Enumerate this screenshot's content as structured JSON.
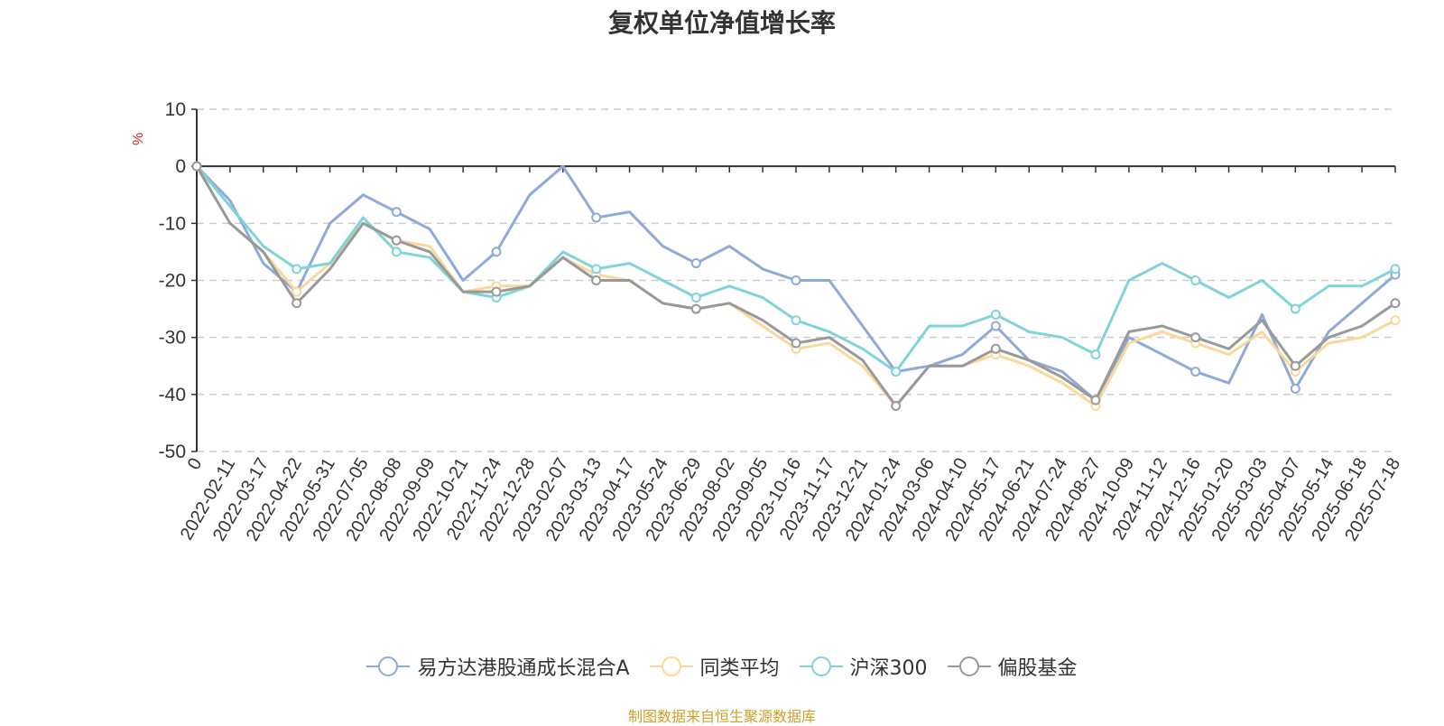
{
  "chart_data": {
    "type": "line",
    "title": "复权单位净值增长率",
    "ylabel": "%",
    "ylim": [
      -50,
      10
    ],
    "yticks": [
      10,
      0,
      -10,
      -20,
      -30,
      -40,
      -50
    ],
    "grid": true,
    "legend_position": "bottom",
    "source": "制图数据来自恒生聚源数据库",
    "x": [
      "0",
      "2022-02-11",
      "2022-03-17",
      "2022-04-22",
      "2022-05-31",
      "2022-07-05",
      "2022-08-08",
      "2022-09-09",
      "2022-10-21",
      "2022-11-24",
      "2022-12-28",
      "2023-02-07",
      "2023-03-13",
      "2023-04-17",
      "2023-05-24",
      "2023-06-29",
      "2023-08-02",
      "2023-09-05",
      "2023-10-16",
      "2023-11-17",
      "2023-12-21",
      "2024-01-24",
      "2024-03-06",
      "2024-04-10",
      "2024-05-17",
      "2024-06-21",
      "2024-07-24",
      "2024-08-27",
      "2024-10-09",
      "2024-11-12",
      "2024-12-16",
      "2025-01-20",
      "2025-03-03",
      "2025-04-07",
      "2025-05-14",
      "2025-06-18",
      "2025-07-18"
    ],
    "series": [
      {
        "name": "易方达港股通成长混合A",
        "color": "#8eaadb",
        "values": [
          0,
          -6,
          -17,
          -22,
          -10,
          -5,
          -8,
          -11,
          -20,
          -15,
          -5,
          0,
          -9,
          -8,
          -14,
          -17,
          -14,
          -18,
          -20,
          -20,
          -28,
          -36,
          -35,
          -33,
          -28,
          -34,
          -36,
          -41,
          -30,
          -33,
          -36,
          -38,
          -26,
          -39,
          -29,
          -24,
          -19
        ]
      },
      {
        "name": "同类平均",
        "color": "#fbd89a",
        "values": [
          0,
          -10,
          -15,
          -22,
          -17,
          -10,
          -13,
          -14,
          -22,
          -21,
          -21,
          -16,
          -19,
          -20,
          -24,
          -25,
          -24,
          -28,
          -32,
          -31,
          -35,
          -42,
          -35,
          -35,
          -33,
          -35,
          -38,
          -42,
          -31,
          -29,
          -31,
          -33,
          -29,
          -36,
          -31,
          -30,
          -27
        ]
      },
      {
        "name": "沪深300",
        "color": "#80d4d8",
        "values": [
          0,
          -7,
          -14,
          -18,
          -17,
          -9,
          -15,
          -16,
          -22,
          -23,
          -21,
          -15,
          -18,
          -17,
          -20,
          -23,
          -21,
          -23,
          -27,
          -29,
          -32,
          -36,
          -28,
          -28,
          -26,
          -29,
          -30,
          -33,
          -20,
          -17,
          -20,
          -23,
          -20,
          -25,
          -21,
          -21,
          -18
        ]
      },
      {
        "name": "偏股基金",
        "color": "#999999",
        "values": [
          0,
          -10,
          -15,
          -24,
          -18,
          -10,
          -13,
          -15,
          -22,
          -22,
          -21,
          -16,
          -20,
          -20,
          -24,
          -25,
          -24,
          -27,
          -31,
          -30,
          -34,
          -42,
          -35,
          -35,
          -32,
          -34,
          -37,
          -41,
          -29,
          -28,
          -30,
          -32,
          -27,
          -35,
          -30,
          -28,
          -24
        ]
      }
    ]
  }
}
